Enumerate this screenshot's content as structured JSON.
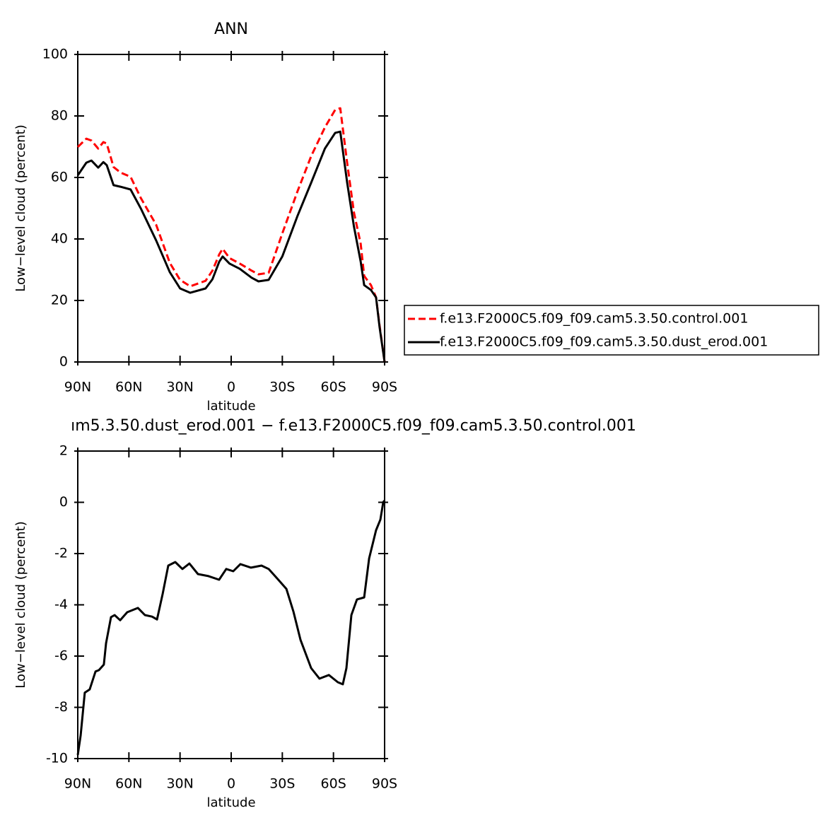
{
  "chart_data": [
    {
      "type": "line",
      "title": "ANN",
      "xlabel": "latitude",
      "ylabel": "Low−level cloud (percent)",
      "x": [
        90,
        85,
        82,
        78,
        75,
        73,
        69,
        65,
        59,
        53,
        44,
        36,
        30,
        24,
        15,
        11,
        7,
        5,
        1,
        -5,
        -12,
        -16,
        -22,
        -30,
        -39,
        -47,
        -55,
        -61,
        -64,
        -68,
        -72,
        -76,
        -78,
        -82,
        -85,
        -87,
        -90
      ],
      "xlim": [
        90,
        -90
      ],
      "xticks": [
        {
          "value": 90,
          "label": "90N"
        },
        {
          "value": 60,
          "label": "60N"
        },
        {
          "value": 30,
          "label": "30N"
        },
        0,
        {
          "value": -30,
          "label": "30S"
        },
        {
          "value": -60,
          "label": "60S"
        },
        {
          "value": -90,
          "label": "90S"
        }
      ],
      "ylim": [
        0,
        100
      ],
      "yticks": [
        0,
        20,
        40,
        60,
        80,
        100
      ],
      "legend": "right",
      "series": [
        {
          "name": "f.e13.F2000C5.f09_f09.cam5.3.50.control.001",
          "color": "#ff0000",
          "line_style": "dashed",
          "values": [
            69.9,
            72.6,
            72,
            69.4,
            71.5,
            71,
            63.4,
            61.6,
            60.2,
            53.3,
            44.6,
            32.2,
            26.7,
            24.6,
            26.4,
            29.7,
            35,
            36.8,
            33.8,
            32,
            29.7,
            28.5,
            29,
            41.8,
            55.6,
            67,
            76.3,
            82,
            82.5,
            64.8,
            48.7,
            38.4,
            28,
            25,
            21,
            12,
            0
          ]
        },
        {
          "name": "f.e13.F2000C5.f09_f09.cam5.3.50.dust_erod.001",
          "color": "#000000",
          "line_style": "solid",
          "values": [
            60.7,
            64.8,
            65.5,
            63.2,
            65,
            64,
            57.5,
            57,
            56.1,
            49.9,
            39.5,
            29.2,
            23.9,
            22.5,
            23.9,
            26.9,
            32.6,
            34.3,
            32,
            30.3,
            27.4,
            26.2,
            26.7,
            34.3,
            47.6,
            58.4,
            69.4,
            74.5,
            74.9,
            58.4,
            44.1,
            32.6,
            25,
            23.4,
            21,
            11.5,
            0
          ]
        }
      ]
    },
    {
      "type": "line",
      "title": "ım5.3.50.dust_erod.001 − f.e13.F2000C5.f09_f09.cam5.3.50.control.001",
      "xlabel": "latitude",
      "ylabel": "Low−level cloud (percent)",
      "x": [
        90,
        88.3,
        85.9,
        83,
        79.6,
        77.6,
        74.7,
        73.4,
        70.5,
        68.4,
        65.1,
        61,
        54.7,
        50.6,
        46.4,
        43.5,
        40.2,
        36.9,
        32.8,
        28.6,
        24.5,
        19.5,
        13.3,
        7.1,
        2.9,
        -1.2,
        -5.4,
        -11.6,
        -17.8,
        -22,
        -27,
        -32.4,
        -36.5,
        -40.7,
        -46.9,
        -51.8,
        -57.3,
        -62.6,
        -65.5,
        -67.6,
        -70.5,
        -73.8,
        -78,
        -80.9,
        -85,
        -87.5,
        -89.2,
        -90
      ],
      "xlim": [
        90,
        -90
      ],
      "xticks": [
        {
          "value": 90,
          "label": "90N"
        },
        {
          "value": 60,
          "label": "60N"
        },
        {
          "value": 30,
          "label": "30N"
        },
        0,
        {
          "value": -30,
          "label": "30S"
        },
        {
          "value": -60,
          "label": "60S"
        },
        {
          "value": -90,
          "label": "90S"
        }
      ],
      "ylim": [
        -10,
        2
      ],
      "yticks": [
        -10,
        -8,
        -6,
        -4,
        -2,
        0,
        2
      ],
      "color": "#000000",
      "values": [
        -9.86,
        -9.09,
        -7.43,
        -7.3,
        -6.6,
        -6.55,
        -6.33,
        -5.5,
        -4.48,
        -4.4,
        -4.6,
        -4.29,
        -4.12,
        -4.4,
        -4.46,
        -4.57,
        -3.57,
        -2.47,
        -2.33,
        -2.6,
        -2.39,
        -2.8,
        -2.88,
        -3.02,
        -2.6,
        -2.69,
        -2.41,
        -2.55,
        -2.47,
        -2.6,
        -2.97,
        -3.38,
        -4.26,
        -5.37,
        -6.47,
        -6.88,
        -6.74,
        -7.02,
        -7.1,
        -6.47,
        -4.4,
        -3.79,
        -3.71,
        -2.19,
        -1.09,
        -0.68,
        0.01,
        0.07
      ]
    }
  ]
}
